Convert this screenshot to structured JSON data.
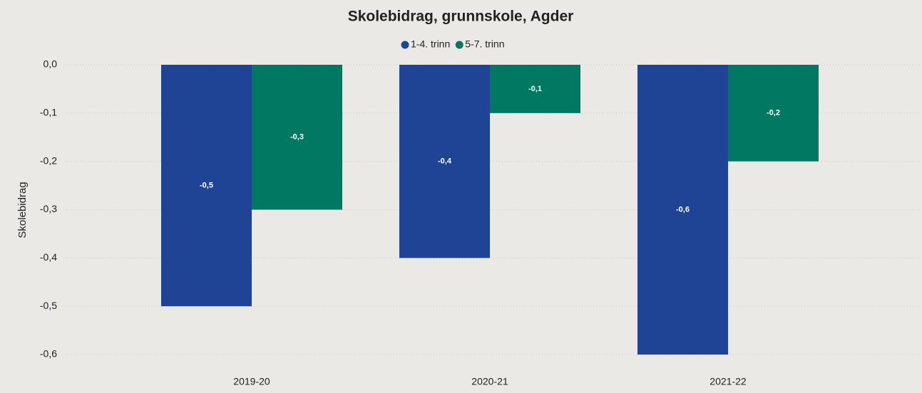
{
  "chart_data": {
    "type": "bar",
    "title": "Skolebidrag, grunnskole, Agder",
    "ylabel": "Skolebidrag",
    "categories": [
      "2019-20",
      "2020-21",
      "2021-22"
    ],
    "series": [
      {
        "name": "1-4. trinn",
        "color": "#1f4496",
        "values": [
          -0.5,
          -0.4,
          -0.6
        ],
        "value_labels": [
          "-0,5",
          "-0,4",
          "-0,6"
        ]
      },
      {
        "name": "5-7. trinn",
        "color": "#007862",
        "values": [
          -0.3,
          -0.1,
          -0.2
        ],
        "value_labels": [
          "-0,3",
          "-0,1",
          "-0,2"
        ]
      }
    ],
    "ylim": [
      -0.6,
      0
    ],
    "yticks": [
      {
        "value": 0,
        "label": "0,0"
      },
      {
        "value": -0.1,
        "label": "-0,1"
      },
      {
        "value": -0.2,
        "label": "-0,2"
      },
      {
        "value": -0.3,
        "label": "-0,3"
      },
      {
        "value": -0.4,
        "label": "-0,4"
      },
      {
        "value": -0.5,
        "label": "-0,5"
      },
      {
        "value": -0.6,
        "label": "-0,6"
      }
    ],
    "grid": true,
    "legend": "top"
  }
}
